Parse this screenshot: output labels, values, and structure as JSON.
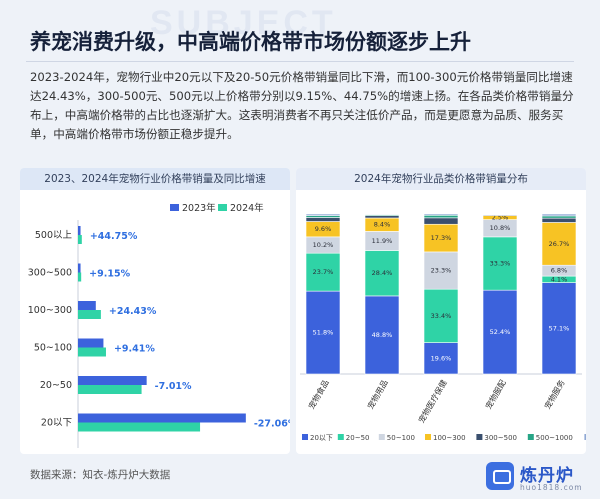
{
  "watermark": "SUBJECT",
  "headline": "养宠消费升级，中高端价格带市场份额逐步上升",
  "paragraph": "2023-2024年，宠物行业中20元以下及20-50元价格带销量同比下滑，而100-300元价格带销量同比增速达24.43%，300-500元、500元以上价格带分别以9.15%、44.75%的增速上扬。在各品类价格带销量分布上，中高端价格带的占比也逐渐扩大。这表明消费者不再只关注低价产品，而是更愿意为品质、服务买单，中高端价格带市场份额正稳步提升。",
  "source": "数据来源：知衣-炼丹炉大数据",
  "logo": {
    "name": "炼丹炉",
    "url": "huo1818.com"
  },
  "colors": {
    "y2023": "#3c62dc",
    "y2024": "#2fd3a6",
    "p20": "#3c62dc",
    "p20_50": "#2fd3a6",
    "p50_100": "#cfd6e1",
    "p100_300": "#f7c324",
    "p300_500": "#3a4f6e",
    "p500_1000": "#27a586",
    "p1000": "#8fa8d4"
  },
  "chart_data": [
    {
      "type": "bar",
      "orientation": "horizontal",
      "title": "2023、2024年宠物行业价格带销量及同比增速",
      "categories": [
        "500以上",
        "300~500",
        "100~300",
        "50~100",
        "20~50",
        "20以下"
      ],
      "series": [
        {
          "name": "2023年",
          "values": [
            2,
            2,
            14,
            20,
            54,
            132
          ]
        },
        {
          "name": "2024年",
          "values": [
            3,
            2.5,
            18,
            22,
            50,
            96
          ]
        }
      ],
      "growth_labels": [
        "+44.75%",
        "+9.15%",
        "+24.43%",
        "+9.41%",
        "-7.01%",
        "-27.06%"
      ],
      "legend": "top-right",
      "xlim": [
        0,
        140
      ]
    },
    {
      "type": "bar",
      "stacked": true,
      "title": "2024年宠物行业品类价格带销量分布",
      "categories": [
        "宠物食品",
        "宠物用品",
        "宠物医疗保健",
        "宠物服配",
        "宠物服务"
      ],
      "series": [
        {
          "name": "20以下",
          "values": [
            51.8,
            48.8,
            19.6,
            52.4,
            57.1
          ],
          "labels": [
            "51.8%",
            "48.8%",
            "19.6%",
            "52.4%",
            "57.1%"
          ]
        },
        {
          "name": "20~50",
          "values": [
            23.7,
            28.4,
            33.4,
            33.3,
            4.1
          ],
          "labels": [
            "23.7%",
            "28.4%",
            "33.4%",
            "33.3%",
            "4.1%"
          ]
        },
        {
          "name": "50~100",
          "values": [
            10.2,
            11.9,
            23.3,
            10.8,
            6.8
          ],
          "labels": [
            "10.2%",
            "11.9%",
            "23.3%",
            "10.8%",
            "6.8%"
          ]
        },
        {
          "name": "100~300",
          "values": [
            9.6,
            8.4,
            17.3,
            2.5,
            26.7
          ],
          "labels": [
            "9.6%",
            "8.4%",
            "17.3%",
            "2.5%",
            "26.7%"
          ]
        },
        {
          "name": "300~500",
          "values": [
            2.5,
            1.5,
            4.0,
            0.5,
            2.7
          ],
          "labels": [
            "",
            "",
            "",
            "",
            ""
          ]
        },
        {
          "name": "500~1000",
          "values": [
            1.2,
            0.6,
            1.6,
            0.3,
            1.4
          ],
          "labels": [
            "",
            "",
            "",
            "",
            ""
          ]
        },
        {
          "name": "1000以上",
          "values": [
            1.0,
            0.4,
            0.8,
            0.2,
            1.2
          ],
          "labels": [
            "",
            "",
            "",
            "",
            ""
          ]
        }
      ],
      "legend": "bottom",
      "ylim": [
        0,
        100
      ]
    }
  ]
}
